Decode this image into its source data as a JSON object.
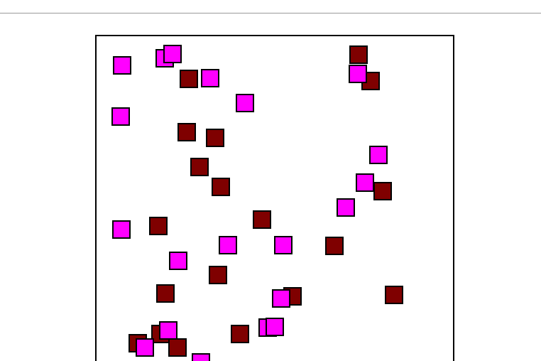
{
  "colors": {
    "dark": "#7f0000",
    "bright": "#ff00ff",
    "border": "#000000",
    "background": "#ffffff"
  },
  "tile_counts": {
    "dark": 27,
    "bright": 25
  }
}
